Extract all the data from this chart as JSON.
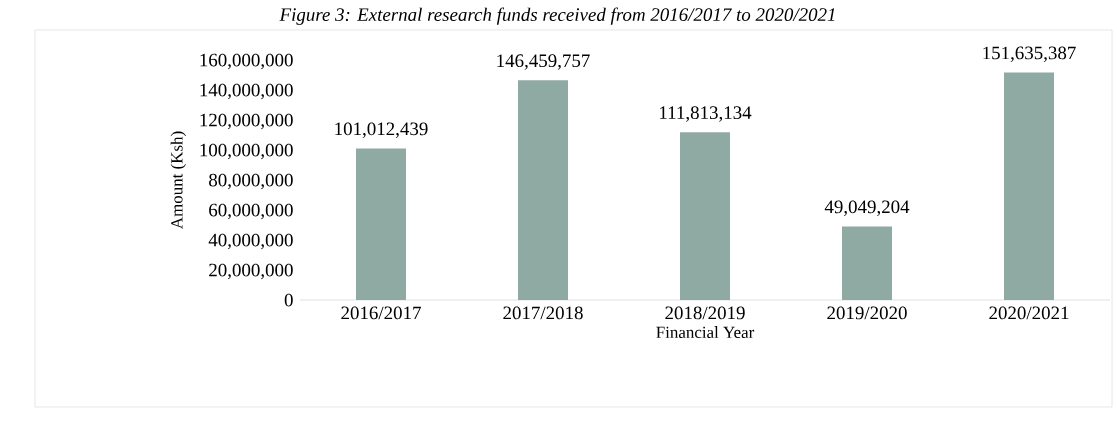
{
  "chart_data": {
    "type": "bar",
    "title": "Figure 3: External research funds received from 2016/2017 to 2020/2021",
    "xlabel": "Financial Year",
    "ylabel": "Amount (Ksh)",
    "categories": [
      "2016/2017",
      "2017/2018",
      "2018/2019",
      "2019/2020",
      "2020/2021"
    ],
    "values": [
      101012439,
      146459757,
      111813134,
      49049204,
      151635387
    ],
    "value_labels": [
      "101,012,439",
      "146,459,757",
      "111,813,134",
      "49,049,204",
      "151,635,387"
    ],
    "color": "#8fa9a3",
    "ylim": [
      0,
      160000000
    ],
    "yticks": [
      {
        "value": 0,
        "label": "0"
      },
      {
        "value": 20000000,
        "label": "20,000,000"
      },
      {
        "value": 40000000,
        "label": "40,000,000"
      },
      {
        "value": 60000000,
        "label": "60,000,000"
      },
      {
        "value": 80000000,
        "label": "80,000,000"
      },
      {
        "value": 100000000,
        "label": "100,000,000"
      },
      {
        "value": 120000000,
        "label": "120,000,000"
      },
      {
        "value": 140000000,
        "label": "140,000,000"
      },
      {
        "value": 160000000,
        "label": "160,000,000"
      }
    ]
  }
}
